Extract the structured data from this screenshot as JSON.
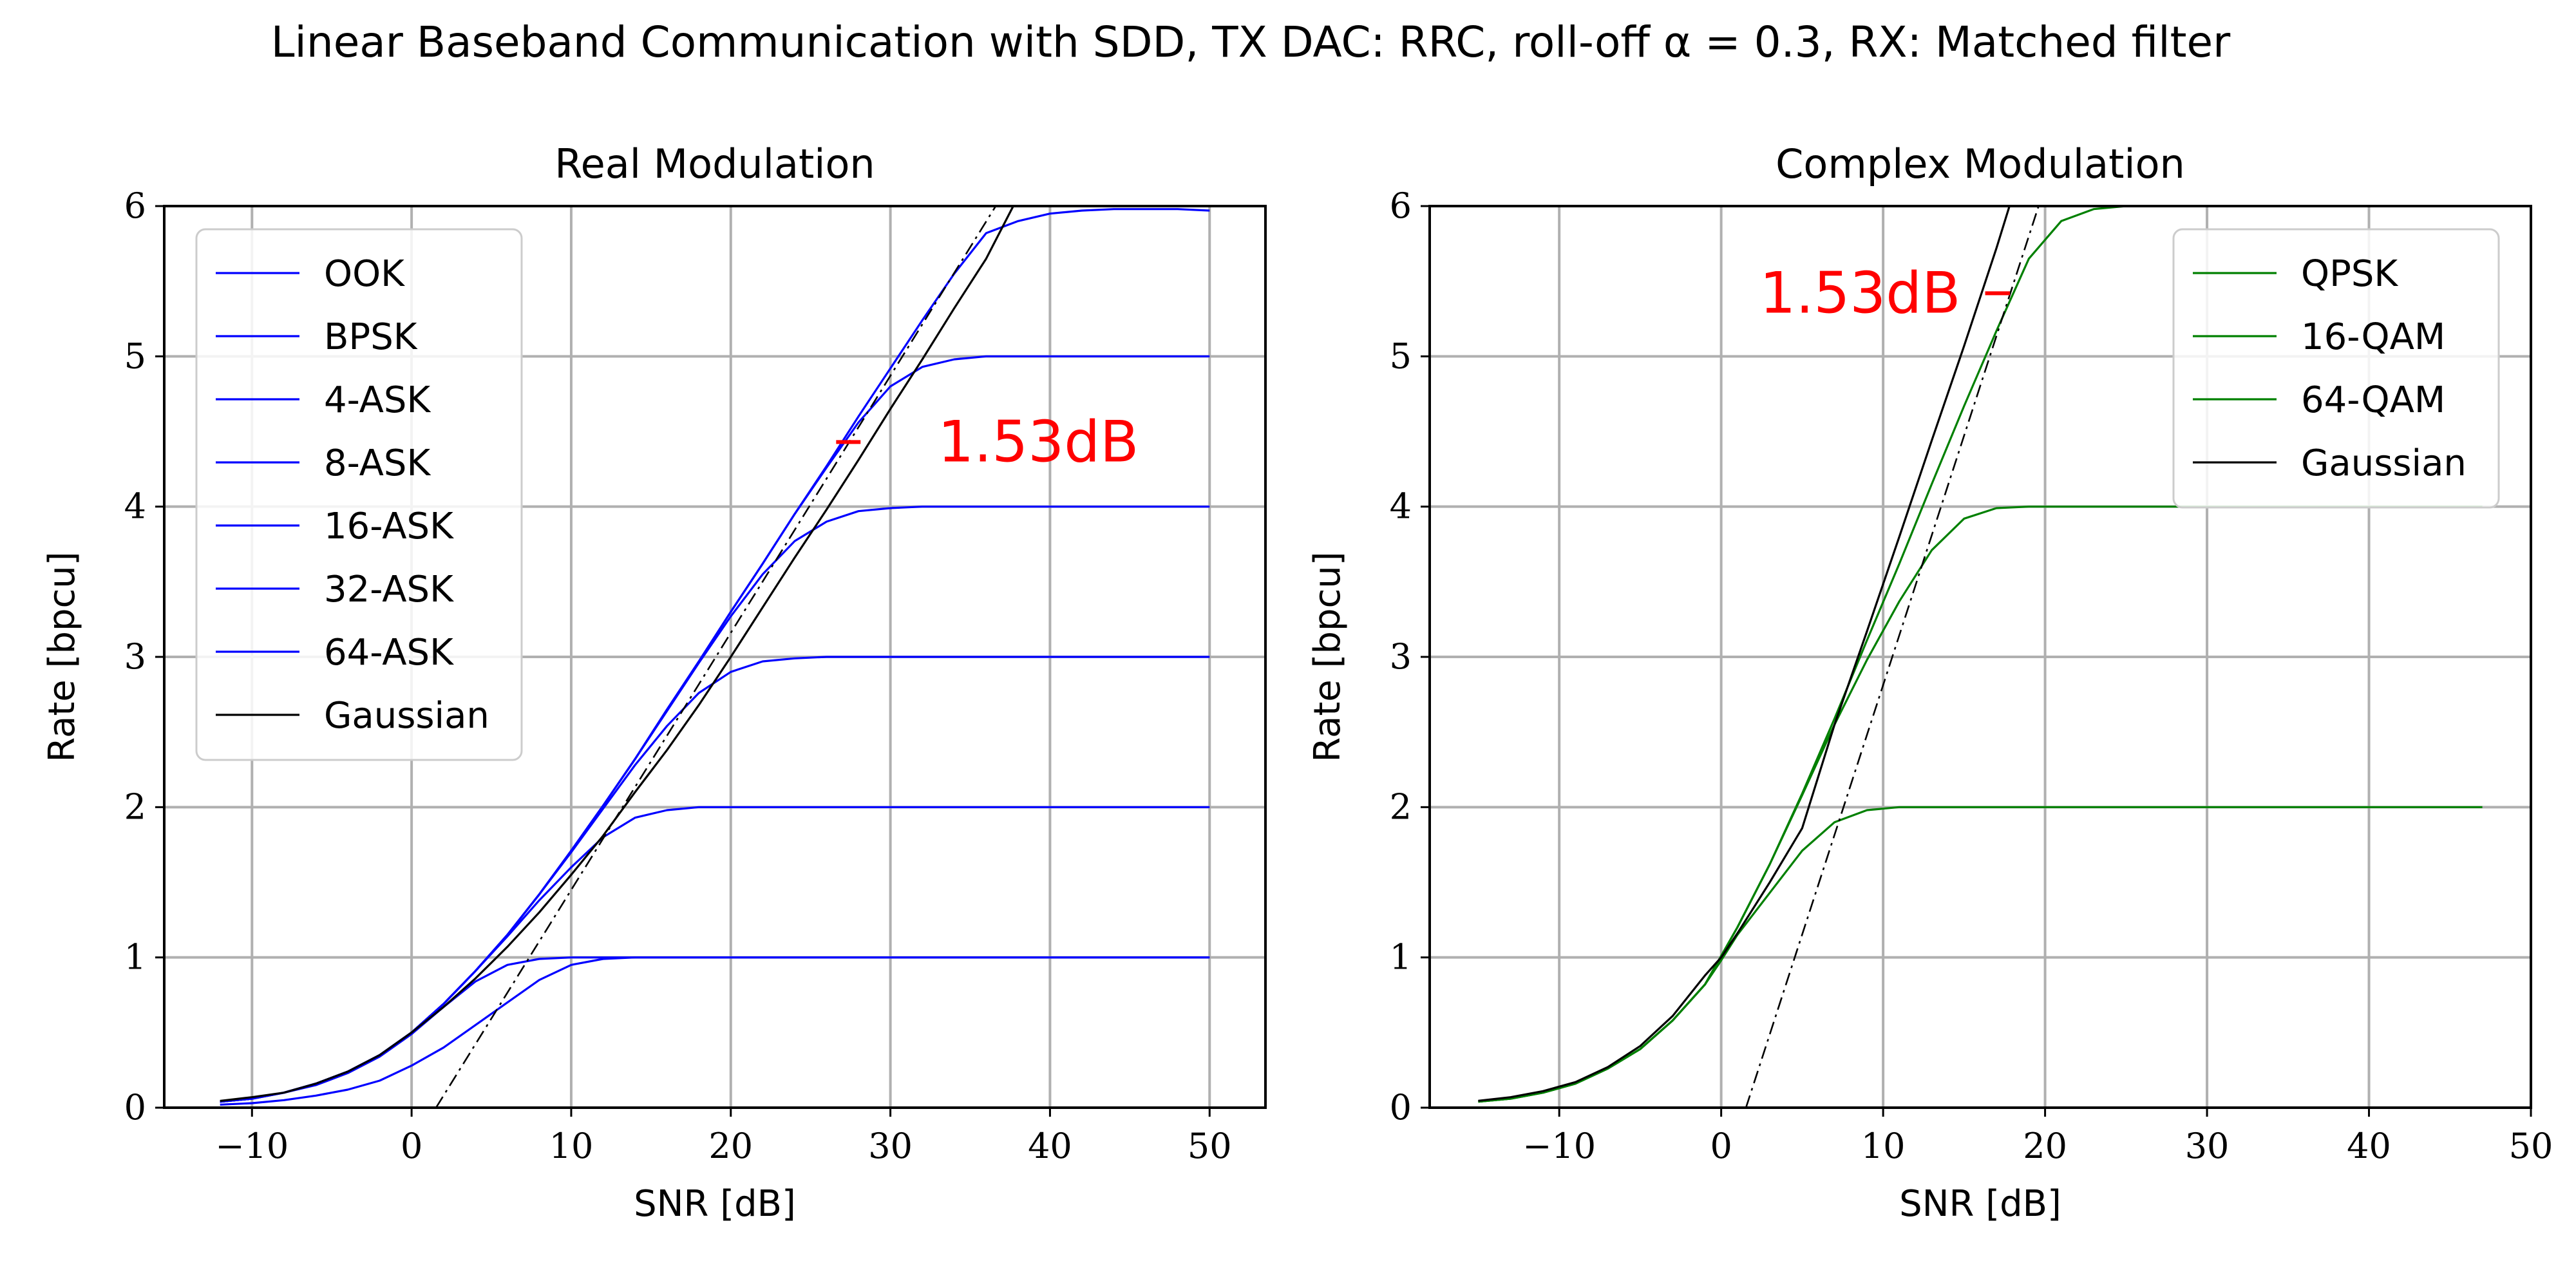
{
  "figure_title": "Linear Baseband Communication with SDD, TX DAC: RRC, roll-off α = 0.3, RX: Matched filter",
  "colors": {
    "real": "#0000ff",
    "complex": "#008000",
    "gaussian": "#000000",
    "annotation": "#ff0000",
    "grid": "#b0b0b0"
  },
  "chart_data": [
    {
      "type": "line",
      "title": "Real Modulation",
      "xlabel": "SNR [dB]",
      "ylabel": "Rate [bpcu]",
      "xlim": [
        -15.5,
        53.5
      ],
      "ylim": [
        0,
        6
      ],
      "xticks": [
        -10,
        0,
        10,
        20,
        30,
        40,
        50
      ],
      "yticks": [
        0,
        1,
        2,
        3,
        4,
        5,
        6
      ],
      "grid": true,
      "legend_position": "top-left",
      "annotation": {
        "text": "1.53dB",
        "at_rate": 4.43,
        "from_snr": 26.6,
        "to_snr": 28.13
      },
      "asymptote": {
        "style": "dash-dot",
        "x": [
          1.53,
          36.6
        ],
        "y": [
          0,
          6
        ]
      },
      "series": [
        {
          "name": "OOK",
          "color": "#0000ff",
          "x": [
            -12,
            -10,
            -8,
            -6,
            -4,
            -2,
            0,
            2,
            4,
            6,
            8,
            10,
            12,
            14,
            16,
            50
          ],
          "y": [
            0.02,
            0.03,
            0.05,
            0.08,
            0.12,
            0.18,
            0.28,
            0.4,
            0.55,
            0.7,
            0.85,
            0.95,
            0.99,
            1.0,
            1.0,
            1.0
          ]
        },
        {
          "name": "BPSK",
          "color": "#0000ff",
          "x": [
            -12,
            -10,
            -8,
            -6,
            -4,
            -2,
            0,
            2,
            4,
            6,
            8,
            10,
            12,
            14,
            50
          ],
          "y": [
            0.04,
            0.06,
            0.1,
            0.15,
            0.23,
            0.34,
            0.49,
            0.67,
            0.84,
            0.95,
            0.99,
            1.0,
            1.0,
            1.0,
            1.0
          ]
        },
        {
          "name": "4-ASK",
          "color": "#0000ff",
          "x": [
            -12,
            -10,
            -8,
            -6,
            -4,
            -2,
            0,
            2,
            4,
            6,
            8,
            10,
            12,
            14,
            16,
            18,
            20,
            50
          ],
          "y": [
            0.04,
            0.06,
            0.1,
            0.16,
            0.24,
            0.35,
            0.5,
            0.69,
            0.91,
            1.14,
            1.38,
            1.6,
            1.8,
            1.93,
            1.98,
            2.0,
            2.0,
            2.0
          ]
        },
        {
          "name": "8-ASK",
          "color": "#0000ff",
          "x": [
            -12,
            -10,
            -8,
            -6,
            -4,
            -2,
            0,
            2,
            4,
            6,
            8,
            10,
            12,
            14,
            16,
            18,
            20,
            22,
            24,
            26,
            50
          ],
          "y": [
            0.04,
            0.06,
            0.1,
            0.16,
            0.24,
            0.35,
            0.5,
            0.69,
            0.91,
            1.15,
            1.42,
            1.7,
            1.99,
            2.28,
            2.54,
            2.76,
            2.9,
            2.97,
            2.99,
            3.0,
            3.0
          ]
        },
        {
          "name": "16-ASK",
          "color": "#0000ff",
          "x": [
            -12,
            -10,
            -8,
            -6,
            -4,
            -2,
            0,
            2,
            4,
            6,
            8,
            10,
            12,
            14,
            16,
            18,
            20,
            22,
            24,
            26,
            28,
            30,
            32,
            50
          ],
          "y": [
            0.04,
            0.06,
            0.1,
            0.16,
            0.24,
            0.35,
            0.5,
            0.69,
            0.91,
            1.15,
            1.42,
            1.71,
            2.01,
            2.32,
            2.64,
            2.96,
            3.27,
            3.55,
            3.77,
            3.9,
            3.97,
            3.99,
            4.0,
            4.0
          ]
        },
        {
          "name": "32-ASK",
          "color": "#0000ff",
          "x": [
            -12,
            -10,
            -8,
            -6,
            -4,
            -2,
            0,
            2,
            4,
            6,
            8,
            10,
            12,
            14,
            16,
            18,
            20,
            22,
            24,
            26,
            28,
            30,
            32,
            34,
            36,
            38,
            50
          ],
          "y": [
            0.04,
            0.06,
            0.1,
            0.16,
            0.24,
            0.35,
            0.5,
            0.69,
            0.91,
            1.15,
            1.42,
            1.71,
            2.01,
            2.32,
            2.65,
            2.97,
            3.3,
            3.62,
            3.95,
            4.26,
            4.56,
            4.8,
            4.93,
            4.98,
            5.0,
            5.0,
            5.0
          ]
        },
        {
          "name": "64-ASK",
          "color": "#0000ff",
          "x": [
            -12,
            -10,
            -8,
            -6,
            -4,
            -2,
            0,
            2,
            4,
            6,
            8,
            10,
            12,
            14,
            16,
            18,
            20,
            22,
            24,
            26,
            28,
            30,
            32,
            34,
            36,
            38,
            40,
            42,
            44,
            48,
            50
          ],
          "y": [
            0.04,
            0.06,
            0.1,
            0.16,
            0.24,
            0.35,
            0.5,
            0.69,
            0.91,
            1.15,
            1.42,
            1.71,
            2.01,
            2.32,
            2.65,
            2.97,
            3.3,
            3.62,
            3.95,
            4.27,
            4.6,
            4.92,
            5.24,
            5.55,
            5.82,
            5.9,
            5.95,
            5.97,
            5.98,
            5.98,
            5.97
          ]
        },
        {
          "name": "Gaussian",
          "color": "#000000",
          "x": [
            -12,
            -10,
            -8,
            -6,
            -4,
            -2,
            0,
            2,
            4,
            6,
            8,
            10,
            12,
            14,
            16,
            18,
            20,
            22,
            24,
            26,
            28,
            30,
            32,
            34,
            36,
            37.7
          ],
          "y": [
            0.045,
            0.07,
            0.1,
            0.16,
            0.24,
            0.35,
            0.5,
            0.67,
            0.86,
            1.07,
            1.3,
            1.55,
            1.81,
            2.1,
            2.38,
            2.68,
            3.0,
            3.33,
            3.66,
            3.98,
            4.31,
            4.65,
            4.98,
            5.32,
            5.65,
            6.0
          ]
        }
      ]
    },
    {
      "type": "line",
      "title": "Complex Modulation",
      "xlabel": "SNR [dB]",
      "ylabel": "Rate [bpcu]",
      "xlim": [
        -18,
        50
      ],
      "ylim": [
        0,
        6
      ],
      "xticks": [
        -10,
        0,
        10,
        20,
        30,
        40,
        50
      ],
      "yticks": [
        0,
        1,
        2,
        3,
        4,
        5,
        6
      ],
      "grid": true,
      "legend_position": "top-right",
      "annotation": {
        "text": "1.53dB",
        "at_rate": 5.42,
        "from_snr": 16.3,
        "to_snr": 17.83
      },
      "asymptote": {
        "style": "dash-dot",
        "x": [
          1.53,
          19.6
        ],
        "y": [
          0,
          6
        ]
      },
      "series": [
        {
          "name": "QPSK",
          "color": "#008000",
          "x": [
            -15,
            -13,
            -11,
            -9,
            -7,
            -5,
            -3,
            -1,
            0,
            1,
            3,
            5,
            7,
            9,
            11,
            13,
            47
          ],
          "y": [
            0.04,
            0.06,
            0.1,
            0.16,
            0.26,
            0.39,
            0.58,
            0.82,
            0.98,
            1.15,
            1.43,
            1.71,
            1.9,
            1.98,
            2.0,
            2.0,
            2.0
          ]
        },
        {
          "name": "16-QAM",
          "color": "#008000",
          "x": [
            -15,
            -13,
            -11,
            -9,
            -7,
            -5,
            -3,
            -1,
            1,
            3,
            5,
            7,
            9,
            11,
            13,
            15,
            17,
            19,
            21,
            47
          ],
          "y": [
            0.04,
            0.06,
            0.1,
            0.16,
            0.26,
            0.39,
            0.58,
            0.82,
            1.2,
            1.62,
            2.08,
            2.55,
            2.98,
            3.37,
            3.71,
            3.92,
            3.99,
            4.0,
            4.0,
            4.0
          ]
        },
        {
          "name": "64-QAM",
          "color": "#008000",
          "x": [
            -15,
            -13,
            -11,
            -9,
            -7,
            -5,
            -3,
            -1,
            1,
            3,
            5,
            7,
            9,
            11,
            13,
            15,
            17,
            19,
            21,
            23,
            25,
            27,
            29,
            31,
            47
          ],
          "y": [
            0.04,
            0.06,
            0.1,
            0.16,
            0.26,
            0.39,
            0.58,
            0.82,
            1.2,
            1.62,
            2.09,
            2.59,
            3.11,
            3.62,
            4.15,
            4.67,
            5.17,
            5.65,
            5.9,
            5.98,
            6.0,
            6.0,
            6.0,
            6.0,
            6.0
          ]
        },
        {
          "name": "Gaussian",
          "color": "#000000",
          "x": [
            -15,
            -13,
            -11,
            -9,
            -7,
            -5,
            -3,
            -1,
            0,
            1,
            3,
            5,
            7,
            9,
            11,
            13,
            15,
            17,
            17.8
          ],
          "y": [
            0.046,
            0.07,
            0.11,
            0.17,
            0.27,
            0.41,
            0.61,
            0.88,
            1.0,
            1.16,
            1.5,
            1.86,
            2.55,
            3.17,
            3.8,
            4.44,
            5.07,
            5.72,
            6.0
          ]
        }
      ]
    }
  ]
}
